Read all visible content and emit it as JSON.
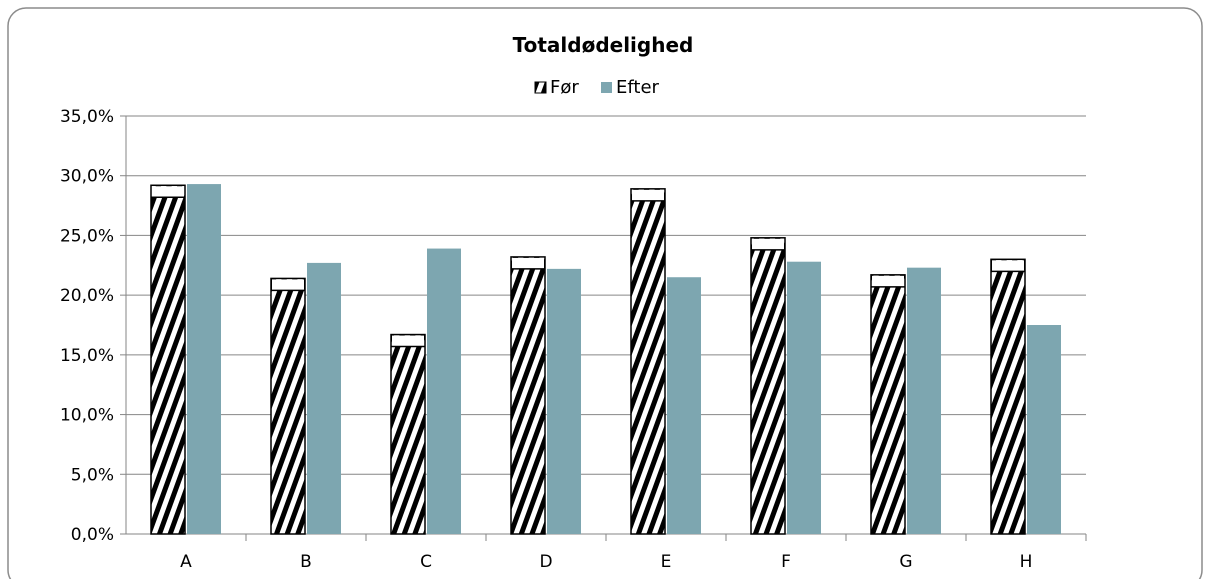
{
  "chart_data": {
    "type": "bar",
    "title": "Totaldødelighed",
    "xlabel": "",
    "ylabel": "",
    "categories": [
      "A",
      "B",
      "C",
      "D",
      "E",
      "F",
      "G",
      "H"
    ],
    "series": [
      {
        "name": "Før",
        "values": [
          29.2,
          21.4,
          16.7,
          23.2,
          28.9,
          24.8,
          21.7,
          23.0
        ]
      },
      {
        "name": "Efter",
        "values": [
          29.3,
          22.7,
          23.9,
          22.2,
          21.5,
          22.8,
          22.3,
          17.5
        ]
      }
    ],
    "ylim": [
      0,
      35
    ],
    "yticks": [
      "0,0%",
      "5,0%",
      "10,0%",
      "15,0%",
      "20,0%",
      "25,0%",
      "30,0%",
      "35,0%"
    ],
    "grid": true,
    "legend_position": "top",
    "colors": {
      "before_stripe": "#000000",
      "after": "#7da6b0",
      "grid": "#868686"
    }
  }
}
